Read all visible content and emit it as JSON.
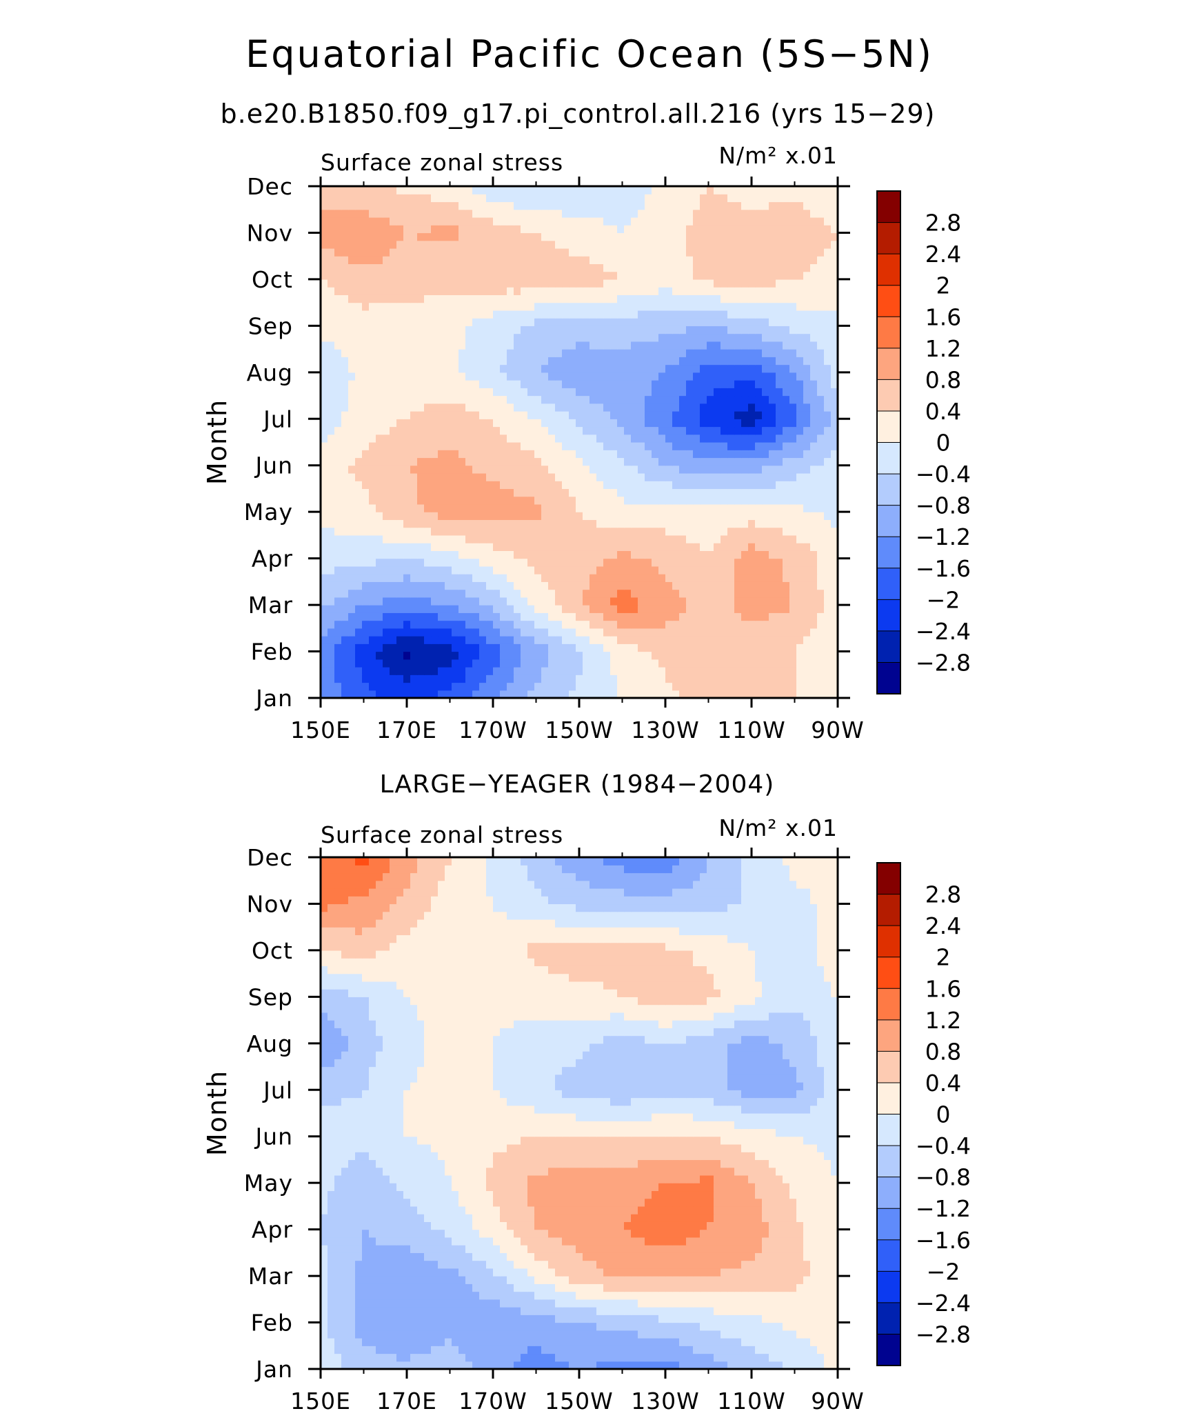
{
  "page": {
    "title": "Equatorial Pacific Ocean (5S−5N)",
    "subtitle": "b.e20.B1850.f09_g17.pi_control.all.216 (yrs 15−29)"
  },
  "chart_data": [
    {
      "type": "heatmap",
      "panel_title": "",
      "variable": "Surface zonal stress",
      "units": "N/m² x.01",
      "ylabel": "Month",
      "x_ticks": [
        "150E",
        "170E",
        "170W",
        "150W",
        "130W",
        "110W",
        "90W"
      ],
      "y_ticks": [
        "Jan",
        "Feb",
        "Mar",
        "Apr",
        "May",
        "Jun",
        "Jul",
        "Aug",
        "Sep",
        "Oct",
        "Nov",
        "Dec"
      ],
      "x_lon": [
        150,
        160,
        170,
        180,
        190,
        200,
        210,
        220,
        230,
        240,
        250,
        260,
        270
      ],
      "values": [
        [
          -1.3,
          -1.9,
          -2.1,
          -1.9,
          -1.3,
          -0.7,
          -0.3,
          0.0,
          0.3,
          0.6,
          0.6,
          0.4,
          0.1
        ],
        [
          -1.4,
          -2.2,
          -2.9,
          -2.6,
          -1.8,
          -1.0,
          -0.5,
          0.2,
          0.5,
          0.6,
          0.5,
          0.4,
          0.1
        ],
        [
          -0.7,
          -1.2,
          -1.4,
          -1.2,
          -0.7,
          0.1,
          0.8,
          1.4,
          1.0,
          0.6,
          1.0,
          0.8,
          0.2
        ],
        [
          -0.2,
          -0.3,
          -0.4,
          -0.2,
          0.2,
          0.5,
          0.6,
          0.9,
          0.7,
          0.4,
          1.0,
          0.7,
          0.1
        ],
        [
          0.1,
          0.3,
          0.7,
          1.0,
          1.0,
          0.9,
          0.4,
          0.1,
          0.2,
          0.2,
          0.2,
          0.1,
          -0.1
        ],
        [
          0.2,
          0.5,
          0.8,
          0.9,
          0.7,
          0.5,
          0.1,
          -0.3,
          -0.8,
          -1.1,
          -1.0,
          -0.6,
          -0.2
        ],
        [
          -0.2,
          0.2,
          0.4,
          0.6,
          0.4,
          0.0,
          -0.5,
          -0.9,
          -1.5,
          -2.2,
          -2.6,
          -1.7,
          -0.6
        ],
        [
          -0.3,
          0.1,
          0.2,
          0.1,
          -0.3,
          -0.8,
          -1.1,
          -1.0,
          -1.2,
          -1.8,
          -1.9,
          -1.2,
          -0.2
        ],
        [
          0.1,
          0.2,
          0.2,
          0.1,
          -0.2,
          -0.5,
          -0.6,
          -0.6,
          -0.7,
          -0.8,
          -0.6,
          -0.3,
          -0.1
        ],
        [
          0.4,
          0.7,
          0.6,
          0.5,
          0.6,
          0.7,
          0.6,
          0.4,
          0.2,
          0.5,
          0.6,
          0.4,
          0.3
        ],
        [
          1.0,
          1.1,
          0.8,
          0.9,
          0.6,
          0.4,
          0.2,
          0.0,
          0.2,
          0.6,
          0.5,
          0.6,
          0.4
        ],
        [
          0.6,
          0.5,
          0.3,
          0.2,
          -0.3,
          -0.4,
          -0.4,
          -0.2,
          0.1,
          0.4,
          0.3,
          0.3,
          0.1
        ]
      ],
      "colorbar": {
        "labels": [
          "2.8",
          "2.4",
          "2",
          "1.6",
          "1.2",
          "0.8",
          "0.4",
          "0",
          "−0.4",
          "−0.8",
          "−1.2",
          "−1.6",
          "−2",
          "−2.4",
          "−2.8"
        ],
        "levels": [
          2.8,
          2.4,
          2.0,
          1.6,
          1.2,
          0.8,
          0.4,
          0.0,
          -0.4,
          -0.8,
          -1.2,
          -1.6,
          -2.0,
          -2.4,
          -2.8
        ],
        "colors": [
          "#840000",
          "#b41c00",
          "#df3000",
          "#ff4e14",
          "#fe7a45",
          "#fda57f",
          "#fdcbb2",
          "#fff0e0",
          "#d6e8fe",
          "#b3ccfd",
          "#8daefc",
          "#5f8bfb",
          "#3060f9",
          "#0c3af0",
          "#0022b0",
          "#000390"
        ]
      }
    },
    {
      "type": "heatmap",
      "panel_title": "LARGE−YEAGER (1984−2004)",
      "variable": "Surface zonal stress",
      "units": "N/m² x.01",
      "ylabel": "Month",
      "x_ticks": [
        "150E",
        "170E",
        "170W",
        "150W",
        "130W",
        "110W",
        "90W"
      ],
      "y_ticks": [
        "Jan",
        "Feb",
        "Mar",
        "Apr",
        "May",
        "Jun",
        "Jul",
        "Aug",
        "Sep",
        "Oct",
        "Nov",
        "Dec"
      ],
      "x_lon": [
        150,
        160,
        170,
        180,
        190,
        200,
        210,
        220,
        230,
        240,
        250,
        260,
        270
      ],
      "values": [
        [
          -0.1,
          -0.6,
          -0.7,
          -0.5,
          -1.0,
          -1.4,
          -1.2,
          -1.3,
          -1.4,
          -1.0,
          -0.7,
          -0.3,
          0.1
        ],
        [
          -0.3,
          -1.0,
          -1.2,
          -1.0,
          -1.1,
          -1.0,
          -0.8,
          -0.7,
          -0.5,
          -0.3,
          -0.1,
          0.1,
          0.2
        ],
        [
          -0.3,
          -0.9,
          -1.1,
          -0.9,
          -0.5,
          0.1,
          0.6,
          0.9,
          0.9,
          0.8,
          0.7,
          0.5,
          0.2
        ],
        [
          -0.4,
          -0.8,
          -0.6,
          -0.3,
          0.2,
          0.8,
          1.0,
          1.2,
          1.4,
          1.2,
          1.0,
          0.5,
          0.0
        ],
        [
          -0.3,
          -0.6,
          -0.3,
          0.0,
          0.5,
          0.9,
          1.0,
          1.0,
          1.2,
          1.3,
          0.8,
          0.3,
          0.0
        ],
        [
          -0.2,
          -0.3,
          0.0,
          0.1,
          0.3,
          0.4,
          0.4,
          0.4,
          0.4,
          0.4,
          0.2,
          0.0,
          -0.1
        ],
        [
          -0.5,
          -0.4,
          0.0,
          0.1,
          0.0,
          -0.3,
          -0.6,
          -0.7,
          -0.5,
          -0.6,
          -1.0,
          -0.9,
          -0.2
        ],
        [
          -1.2,
          -0.6,
          -0.1,
          0.1,
          0.0,
          -0.2,
          -0.3,
          -0.6,
          -0.4,
          -0.6,
          -1.0,
          -0.7,
          -0.1
        ],
        [
          -0.6,
          -0.4,
          0.0,
          0.1,
          0.1,
          0.2,
          0.3,
          0.4,
          0.6,
          0.5,
          0.1,
          -0.3,
          0.0
        ],
        [
          0.4,
          0.6,
          0.2,
          0.1,
          0.2,
          0.5,
          0.6,
          0.5,
          0.5,
          0.3,
          0.0,
          -0.4,
          0.4
        ],
        [
          1.3,
          1.1,
          0.7,
          0.2,
          0.0,
          -0.3,
          -0.5,
          -0.6,
          -0.6,
          -0.6,
          -0.3,
          -0.1,
          0.1
        ],
        [
          1.3,
          1.7,
          1.0,
          0.4,
          -0.1,
          -0.6,
          -1.1,
          -1.4,
          -1.5,
          -0.8,
          -0.3,
          0.1,
          0.2
        ]
      ],
      "colorbar": {
        "labels": [
          "2.8",
          "2.4",
          "2",
          "1.6",
          "1.2",
          "0.8",
          "0.4",
          "0",
          "−0.4",
          "−0.8",
          "−1.2",
          "−1.6",
          "−2",
          "−2.4",
          "−2.8"
        ],
        "levels": [
          2.8,
          2.4,
          2.0,
          1.6,
          1.2,
          0.8,
          0.4,
          0.0,
          -0.4,
          -0.8,
          -1.2,
          -1.6,
          -2.0,
          -2.4,
          -2.8
        ],
        "colors": [
          "#840000",
          "#b41c00",
          "#df3000",
          "#ff4e14",
          "#fe7a45",
          "#fda57f",
          "#fdcbb2",
          "#fff0e0",
          "#d6e8fe",
          "#b3ccfd",
          "#8daefc",
          "#5f8bfb",
          "#3060f9",
          "#0c3af0",
          "#0022b0",
          "#000390"
        ]
      }
    }
  ]
}
